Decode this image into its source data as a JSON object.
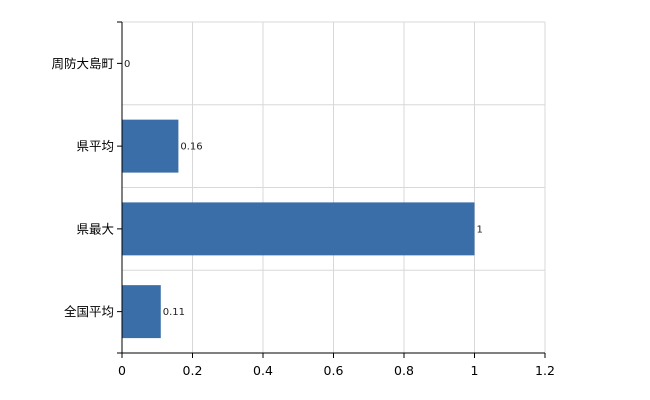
{
  "chart_data": {
    "type": "bar",
    "orientation": "horizontal",
    "categories": [
      "周防大島町",
      "県平均",
      "県最大",
      "全国平均"
    ],
    "values": [
      0,
      0.16,
      1,
      0.11
    ],
    "data_labels": [
      "0",
      "0.16",
      "1",
      "0.11"
    ],
    "xlim": [
      0,
      1.2
    ],
    "x_ticks": [
      0,
      0.2,
      0.4,
      0.6,
      0.8,
      1,
      1.2
    ],
    "x_tick_labels": [
      "0",
      "0.2",
      "0.4",
      "0.6",
      "0.8",
      "1",
      "1.2"
    ],
    "grid": true,
    "legend": "none",
    "bar_color": "#3a6ea8"
  }
}
